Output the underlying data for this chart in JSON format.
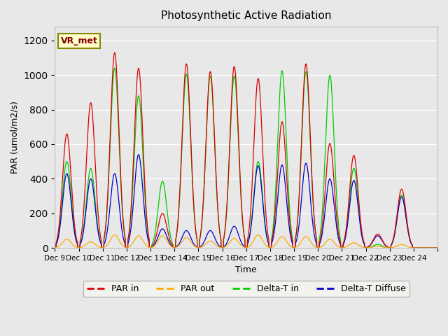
{
  "title": "Photosynthetic Active Radiation",
  "ylabel": "PAR (umol/m2/s)",
  "xlabel": "Time",
  "ylim": [
    0,
    1280
  ],
  "yticks": [
    0,
    200,
    400,
    600,
    800,
    1000,
    1200
  ],
  "xtick_positions": [
    0,
    1,
    2,
    3,
    4,
    5,
    6,
    7,
    8,
    9,
    10,
    11,
    12,
    13,
    14,
    15,
    16
  ],
  "xtick_labels": [
    "Dec 9",
    "Dec 10",
    "Dec 11",
    "Dec 12",
    "Dec 13",
    "Dec 14",
    "Dec 15",
    "Dec 16",
    "Dec 17",
    "Dec 18",
    "Dec 19",
    "Dec 20",
    "Dec 21",
    "Dec 22",
    "Dec 23",
    "Dec 24",
    ""
  ],
  "plot_bg_color": "#e8e8e8",
  "legend_bg_color": "#f5f5f0",
  "colors": {
    "PAR_in": "#dd0000",
    "PAR_out": "#ffaa00",
    "Delta_T_in": "#00cc00",
    "Delta_T_Diffuse": "#0000cc"
  },
  "annotation_text": "VR_met",
  "annotation_color": "#880000",
  "annotation_bg": "#ffffcc",
  "annotation_border": "#888800",
  "n_days": 16,
  "par_in_peaks": [
    660,
    840,
    1130,
    1040,
    200,
    1065,
    1020,
    1050,
    980,
    730,
    1065,
    605,
    535,
    80,
    340,
    0
  ],
  "par_out_peaks": [
    50,
    35,
    75,
    70,
    70,
    60,
    40,
    55,
    75,
    65,
    65,
    50,
    30,
    10,
    20,
    0
  ],
  "dtin_peaks": [
    500,
    460,
    1040,
    880,
    385,
    1005,
    995,
    995,
    500,
    1025,
    1020,
    1000,
    460,
    20,
    305,
    0
  ],
  "dtdif_peaks": [
    430,
    400,
    430,
    540,
    110,
    100,
    100,
    125,
    475,
    480,
    490,
    400,
    390,
    70,
    295,
    0
  ]
}
